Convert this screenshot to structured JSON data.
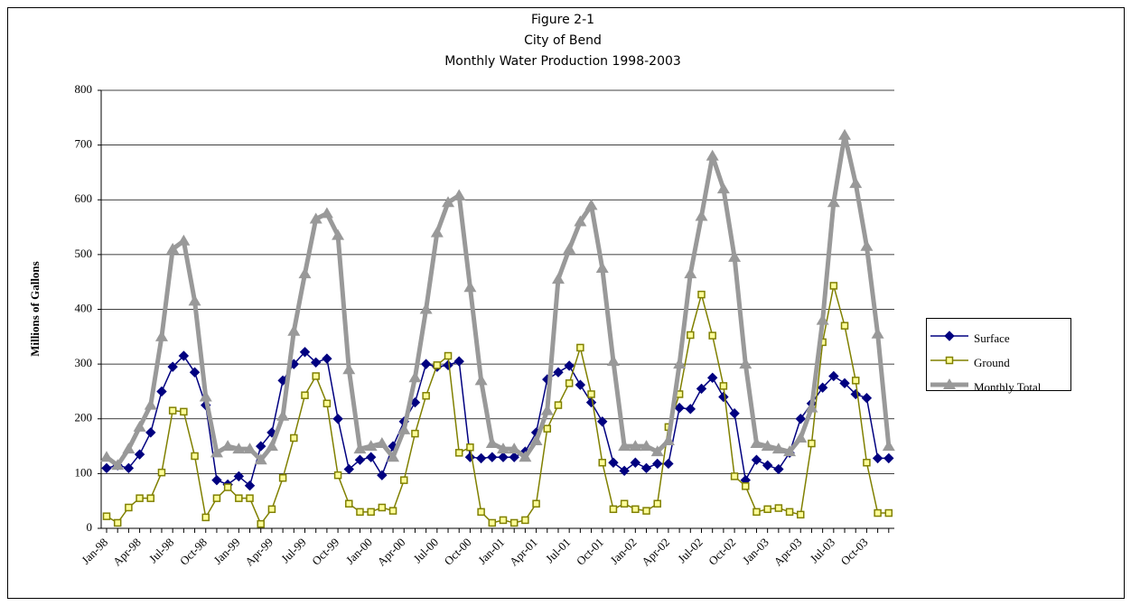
{
  "chart_data": {
    "type": "line",
    "title_lines": [
      "Figure 2-1",
      "City of Bend",
      "Monthly Water Production 1998-2003"
    ],
    "ylabel": "Millions of Gallons",
    "categories": [
      "Jan-98",
      null,
      null,
      "Apr-98",
      null,
      null,
      "Jul-98",
      null,
      null,
      "Oct-98",
      null,
      null,
      "Jan-99",
      null,
      null,
      "Apr-99",
      null,
      null,
      "Jul-99",
      null,
      null,
      "Oct-99",
      null,
      null,
      "Jan-00",
      null,
      null,
      "Apr-00",
      null,
      null,
      "Jul-00",
      null,
      null,
      "Oct-00",
      null,
      null,
      "Jan-01",
      null,
      null,
      "Apr-01",
      null,
      null,
      "Jul-01",
      null,
      null,
      "Oct-01",
      null,
      null,
      "Jan-02",
      null,
      null,
      "Apr-02",
      null,
      null,
      "Jul-02",
      null,
      null,
      "Oct-02",
      null,
      null,
      "Jan-03",
      null,
      null,
      "Apr-03",
      null,
      null,
      "Jul-03",
      null,
      null,
      "Oct-03",
      null,
      null
    ],
    "series": [
      {
        "name": "Surface",
        "color": "#000080",
        "marker": "diamond",
        "width": 1.5,
        "values": [
          110,
          115,
          110,
          135,
          175,
          250,
          295,
          315,
          285,
          225,
          88,
          80,
          95,
          78,
          150,
          175,
          270,
          300,
          322,
          303,
          310,
          200,
          108,
          125,
          130,
          97,
          150,
          195,
          230,
          300,
          295,
          298,
          305,
          130,
          128,
          130,
          130,
          130,
          140,
          175,
          272,
          285,
          297,
          262,
          230,
          195,
          120,
          105,
          120,
          110,
          118,
          118,
          220,
          218,
          255,
          275,
          240,
          210,
          88,
          125,
          115,
          108,
          138,
          200,
          228,
          257,
          278,
          265,
          245,
          238,
          128,
          128
        ]
      },
      {
        "name": "Ground",
        "color": "#808000",
        "marker": "square",
        "width": 1.5,
        "values": [
          22,
          10,
          38,
          55,
          55,
          102,
          215,
          213,
          132,
          20,
          55,
          75,
          55,
          55,
          8,
          35,
          92,
          165,
          243,
          278,
          228,
          97,
          45,
          30,
          30,
          38,
          32,
          88,
          173,
          242,
          298,
          315,
          138,
          148,
          30,
          10,
          15,
          10,
          15,
          45,
          182,
          225,
          265,
          330,
          245,
          120,
          35,
          45,
          35,
          32,
          45,
          185,
          245,
          353,
          427,
          352,
          260,
          95,
          77,
          30,
          35,
          37,
          30,
          25,
          155,
          340,
          443,
          370,
          270,
          120,
          28,
          28
        ]
      },
      {
        "name": "Monthly Total",
        "color": "#999999",
        "marker": "triangle",
        "width": 5,
        "values": [
          130,
          115,
          145,
          185,
          225,
          350,
          510,
          525,
          415,
          240,
          138,
          150,
          145,
          145,
          125,
          150,
          205,
          360,
          465,
          565,
          575,
          535,
          290,
          145,
          150,
          155,
          130,
          180,
          275,
          400,
          540,
          595,
          608,
          440,
          270,
          155,
          145,
          145,
          130,
          160,
          215,
          455,
          510,
          560,
          590,
          475,
          305,
          150,
          150,
          150,
          140,
          160,
          300,
          465,
          570,
          680,
          620,
          495,
          300,
          155,
          150,
          145,
          140,
          165,
          220,
          380,
          595,
          718,
          630,
          515,
          355,
          150
        ]
      }
    ],
    "ylim": [
      0,
      800
    ],
    "yticks": [
      0,
      100,
      200,
      300,
      400,
      500,
      600,
      700,
      800
    ],
    "grid": true,
    "legend": "right"
  }
}
